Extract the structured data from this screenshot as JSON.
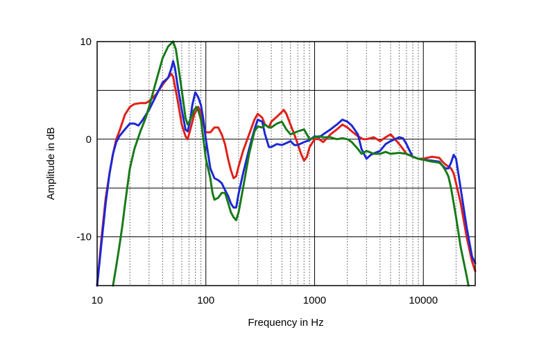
{
  "chart_data": {
    "type": "line",
    "title": "",
    "xlabel": "Frequency in Hz",
    "ylabel": "Amplitude in dB",
    "x_scale": "log",
    "xlim": [
      10,
      30000
    ],
    "ylim": [
      -15,
      10
    ],
    "x_ticks": [
      {
        "value": 10,
        "label": "10"
      },
      {
        "value": 100,
        "label": "100"
      },
      {
        "value": 1000,
        "label": "1000"
      },
      {
        "value": 10000,
        "label": "10000"
      }
    ],
    "y_ticks": [
      {
        "value": 10,
        "label": "10"
      },
      {
        "value": 0,
        "label": "0"
      },
      {
        "value": -10,
        "label": "-10"
      }
    ],
    "grid": true,
    "legend": "none",
    "series": [
      {
        "color": "#e0201a",
        "points": [
          [
            10,
            -15
          ],
          [
            11,
            -10
          ],
          [
            12,
            -6
          ],
          [
            13,
            -3.5
          ],
          [
            14,
            -1.5
          ],
          [
            15,
            0
          ],
          [
            16,
            0.8
          ],
          [
            18,
            2.5
          ],
          [
            20,
            3.3
          ],
          [
            22,
            3.6
          ],
          [
            25,
            3.7
          ],
          [
            28,
            3.7
          ],
          [
            30,
            3.9
          ],
          [
            35,
            4.6
          ],
          [
            40,
            5.6
          ],
          [
            45,
            6.3
          ],
          [
            48,
            6.7
          ],
          [
            50,
            6.4
          ],
          [
            55,
            4
          ],
          [
            60,
            1.5
          ],
          [
            65,
            0.3
          ],
          [
            68,
            0
          ],
          [
            72,
            1
          ],
          [
            78,
            2.5
          ],
          [
            85,
            3.3
          ],
          [
            90,
            2.8
          ],
          [
            95,
            1.5
          ],
          [
            100,
            0.7
          ],
          [
            110,
            0.7
          ],
          [
            120,
            1.2
          ],
          [
            130,
            1.2
          ],
          [
            140,
            0.5
          ],
          [
            150,
            -0.5
          ],
          [
            160,
            -2
          ],
          [
            170,
            -3.2
          ],
          [
            180,
            -4
          ],
          [
            190,
            -3.8
          ],
          [
            200,
            -2.8
          ],
          [
            220,
            -1.2
          ],
          [
            250,
            0.5
          ],
          [
            280,
            2
          ],
          [
            300,
            2.6
          ],
          [
            330,
            2.2
          ],
          [
            350,
            1.5
          ],
          [
            380,
            1.2
          ],
          [
            400,
            1.8
          ],
          [
            450,
            2.3
          ],
          [
            500,
            2.8
          ],
          [
            520,
            3
          ],
          [
            550,
            2.6
          ],
          [
            600,
            1.5
          ],
          [
            650,
            0.5
          ],
          [
            700,
            -0.5
          ],
          [
            750,
            -1.5
          ],
          [
            800,
            -2.2
          ],
          [
            850,
            -1.8
          ],
          [
            900,
            -0.8
          ],
          [
            1000,
            0
          ],
          [
            1100,
            0
          ],
          [
            1200,
            -0.3
          ],
          [
            1400,
            0.5
          ],
          [
            1600,
            1
          ],
          [
            1800,
            1.5
          ],
          [
            2000,
            1.2
          ],
          [
            2200,
            0.8
          ],
          [
            2500,
            0.3
          ],
          [
            2800,
            0
          ],
          [
            3000,
            0
          ],
          [
            3500,
            0.2
          ],
          [
            4000,
            -0.2
          ],
          [
            4500,
            0.2
          ],
          [
            5000,
            0.5
          ],
          [
            5500,
            0
          ],
          [
            6000,
            -0.5
          ],
          [
            6500,
            -1
          ],
          [
            7000,
            -1.5
          ],
          [
            8000,
            -1.8
          ],
          [
            9000,
            -2
          ],
          [
            10000,
            -2
          ],
          [
            12000,
            -1.8
          ],
          [
            14000,
            -1.9
          ],
          [
            15000,
            -2.3
          ],
          [
            16000,
            -2.6
          ],
          [
            17000,
            -2.8
          ],
          [
            18000,
            -3
          ],
          [
            19000,
            -3.5
          ],
          [
            20000,
            -4.5
          ],
          [
            22000,
            -6.5
          ],
          [
            25000,
            -10
          ],
          [
            28000,
            -12.5
          ],
          [
            30000,
            -13.5
          ]
        ]
      },
      {
        "color": "#1c28d4",
        "points": [
          [
            10,
            -15
          ],
          [
            11,
            -10.5
          ],
          [
            12,
            -6.5
          ],
          [
            13,
            -3.5
          ],
          [
            14,
            -1.5
          ],
          [
            15,
            -0.3
          ],
          [
            16,
            0.3
          ],
          [
            18,
            1
          ],
          [
            20,
            1.6
          ],
          [
            22,
            1.6
          ],
          [
            24,
            1.4
          ],
          [
            26,
            1.9
          ],
          [
            30,
            3
          ],
          [
            35,
            4.5
          ],
          [
            40,
            5.8
          ],
          [
            45,
            6.3
          ],
          [
            48,
            7.2
          ],
          [
            50,
            8
          ],
          [
            52,
            7.3
          ],
          [
            55,
            5.5
          ],
          [
            60,
            3
          ],
          [
            65,
            1
          ],
          [
            68,
            0.8
          ],
          [
            72,
            2
          ],
          [
            75,
            3.5
          ],
          [
            80,
            4.8
          ],
          [
            85,
            4.3
          ],
          [
            90,
            3.5
          ],
          [
            95,
            2
          ],
          [
            100,
            0
          ],
          [
            110,
            -3
          ],
          [
            120,
            -4
          ],
          [
            130,
            -4.2
          ],
          [
            140,
            -4.5
          ],
          [
            150,
            -5.2
          ],
          [
            160,
            -5.8
          ],
          [
            170,
            -6.6
          ],
          [
            180,
            -7
          ],
          [
            190,
            -7
          ],
          [
            200,
            -5.6
          ],
          [
            220,
            -3.5
          ],
          [
            250,
            -1
          ],
          [
            280,
            1
          ],
          [
            300,
            2
          ],
          [
            330,
            1.8
          ],
          [
            350,
            0.5
          ],
          [
            380,
            -0.8
          ],
          [
            400,
            -0.8
          ],
          [
            450,
            -0.5
          ],
          [
            500,
            -0.6
          ],
          [
            550,
            -0.4
          ],
          [
            600,
            -0.2
          ],
          [
            650,
            -0.6
          ],
          [
            700,
            -0.6
          ],
          [
            800,
            -0.3
          ],
          [
            900,
            -0.1
          ],
          [
            1000,
            0.3
          ],
          [
            1100,
            0.2
          ],
          [
            1200,
            0.5
          ],
          [
            1400,
            1
          ],
          [
            1600,
            1.5
          ],
          [
            1800,
            2
          ],
          [
            2000,
            1.8
          ],
          [
            2200,
            1.4
          ],
          [
            2500,
            0.5
          ],
          [
            2700,
            -1
          ],
          [
            3000,
            -2
          ],
          [
            3300,
            -1.6
          ],
          [
            3600,
            -1.4
          ],
          [
            4000,
            -1.2
          ],
          [
            4500,
            -0.5
          ],
          [
            5000,
            -0.2
          ],
          [
            5500,
            0
          ],
          [
            6000,
            0.2
          ],
          [
            6500,
            0.1
          ],
          [
            7000,
            -0.5
          ],
          [
            7500,
            -1.2
          ],
          [
            8000,
            -1.8
          ],
          [
            9000,
            -2
          ],
          [
            10000,
            -2.1
          ],
          [
            12000,
            -2.2
          ],
          [
            14000,
            -2.3
          ],
          [
            15000,
            -2.7
          ],
          [
            16000,
            -3
          ],
          [
            17000,
            -3
          ],
          [
            18000,
            -2.4
          ],
          [
            19000,
            -1.6
          ],
          [
            20000,
            -2
          ],
          [
            22000,
            -5
          ],
          [
            25000,
            -9
          ],
          [
            28000,
            -12
          ],
          [
            30000,
            -12.7
          ]
        ]
      },
      {
        "color": "#187a18",
        "points": [
          [
            14,
            -15
          ],
          [
            15,
            -13
          ],
          [
            16,
            -11
          ],
          [
            17,
            -9
          ],
          [
            18,
            -6.8
          ],
          [
            19,
            -4.8
          ],
          [
            20,
            -3
          ],
          [
            22,
            -1
          ],
          [
            25,
            0.8
          ],
          [
            28,
            2.2
          ],
          [
            30,
            3.3
          ],
          [
            35,
            6
          ],
          [
            40,
            8.3
          ],
          [
            45,
            9.5
          ],
          [
            50,
            10
          ],
          [
            53,
            9.2
          ],
          [
            55,
            8
          ],
          [
            60,
            5
          ],
          [
            65,
            2.2
          ],
          [
            68,
            1.5
          ],
          [
            72,
            2
          ],
          [
            78,
            3
          ],
          [
            82,
            3.3
          ],
          [
            85,
            3
          ],
          [
            90,
            2
          ],
          [
            95,
            0
          ],
          [
            100,
            -2
          ],
          [
            110,
            -4
          ],
          [
            115,
            -5.5
          ],
          [
            120,
            -6.2
          ],
          [
            130,
            -6
          ],
          [
            140,
            -5.5
          ],
          [
            150,
            -5.5
          ],
          [
            160,
            -6.5
          ],
          [
            170,
            -7.5
          ],
          [
            180,
            -8
          ],
          [
            190,
            -8.3
          ],
          [
            200,
            -7.5
          ],
          [
            220,
            -5
          ],
          [
            250,
            -1.5
          ],
          [
            280,
            0.8
          ],
          [
            300,
            1.3
          ],
          [
            330,
            1.2
          ],
          [
            350,
            1.5
          ],
          [
            380,
            1.2
          ],
          [
            400,
            1.2
          ],
          [
            450,
            1.6
          ],
          [
            500,
            1.8
          ],
          [
            550,
            1
          ],
          [
            600,
            0.5
          ],
          [
            700,
            0.8
          ],
          [
            800,
            1
          ],
          [
            900,
            0
          ],
          [
            1000,
            0.2
          ],
          [
            1100,
            0.3
          ],
          [
            1200,
            0.2
          ],
          [
            1400,
            0.2
          ],
          [
            1600,
            0
          ],
          [
            1800,
            0.1
          ],
          [
            2000,
            0
          ],
          [
            2200,
            -0.3
          ],
          [
            2500,
            -1
          ],
          [
            2700,
            -1.5
          ],
          [
            3000,
            -1.2
          ],
          [
            3500,
            -1.5
          ],
          [
            4000,
            -1.5
          ],
          [
            4500,
            -1.3
          ],
          [
            5000,
            -1.5
          ],
          [
            6000,
            -1.4
          ],
          [
            7000,
            -1.5
          ],
          [
            8000,
            -1.8
          ],
          [
            9000,
            -2
          ],
          [
            10000,
            -2.1
          ],
          [
            12000,
            -2.3
          ],
          [
            14000,
            -2.4
          ],
          [
            15000,
            -2.7
          ],
          [
            16000,
            -3.2
          ],
          [
            17000,
            -3.8
          ],
          [
            18000,
            -5
          ],
          [
            20000,
            -8
          ],
          [
            22000,
            -11
          ],
          [
            25000,
            -14
          ],
          [
            26000,
            -15
          ]
        ]
      }
    ]
  }
}
